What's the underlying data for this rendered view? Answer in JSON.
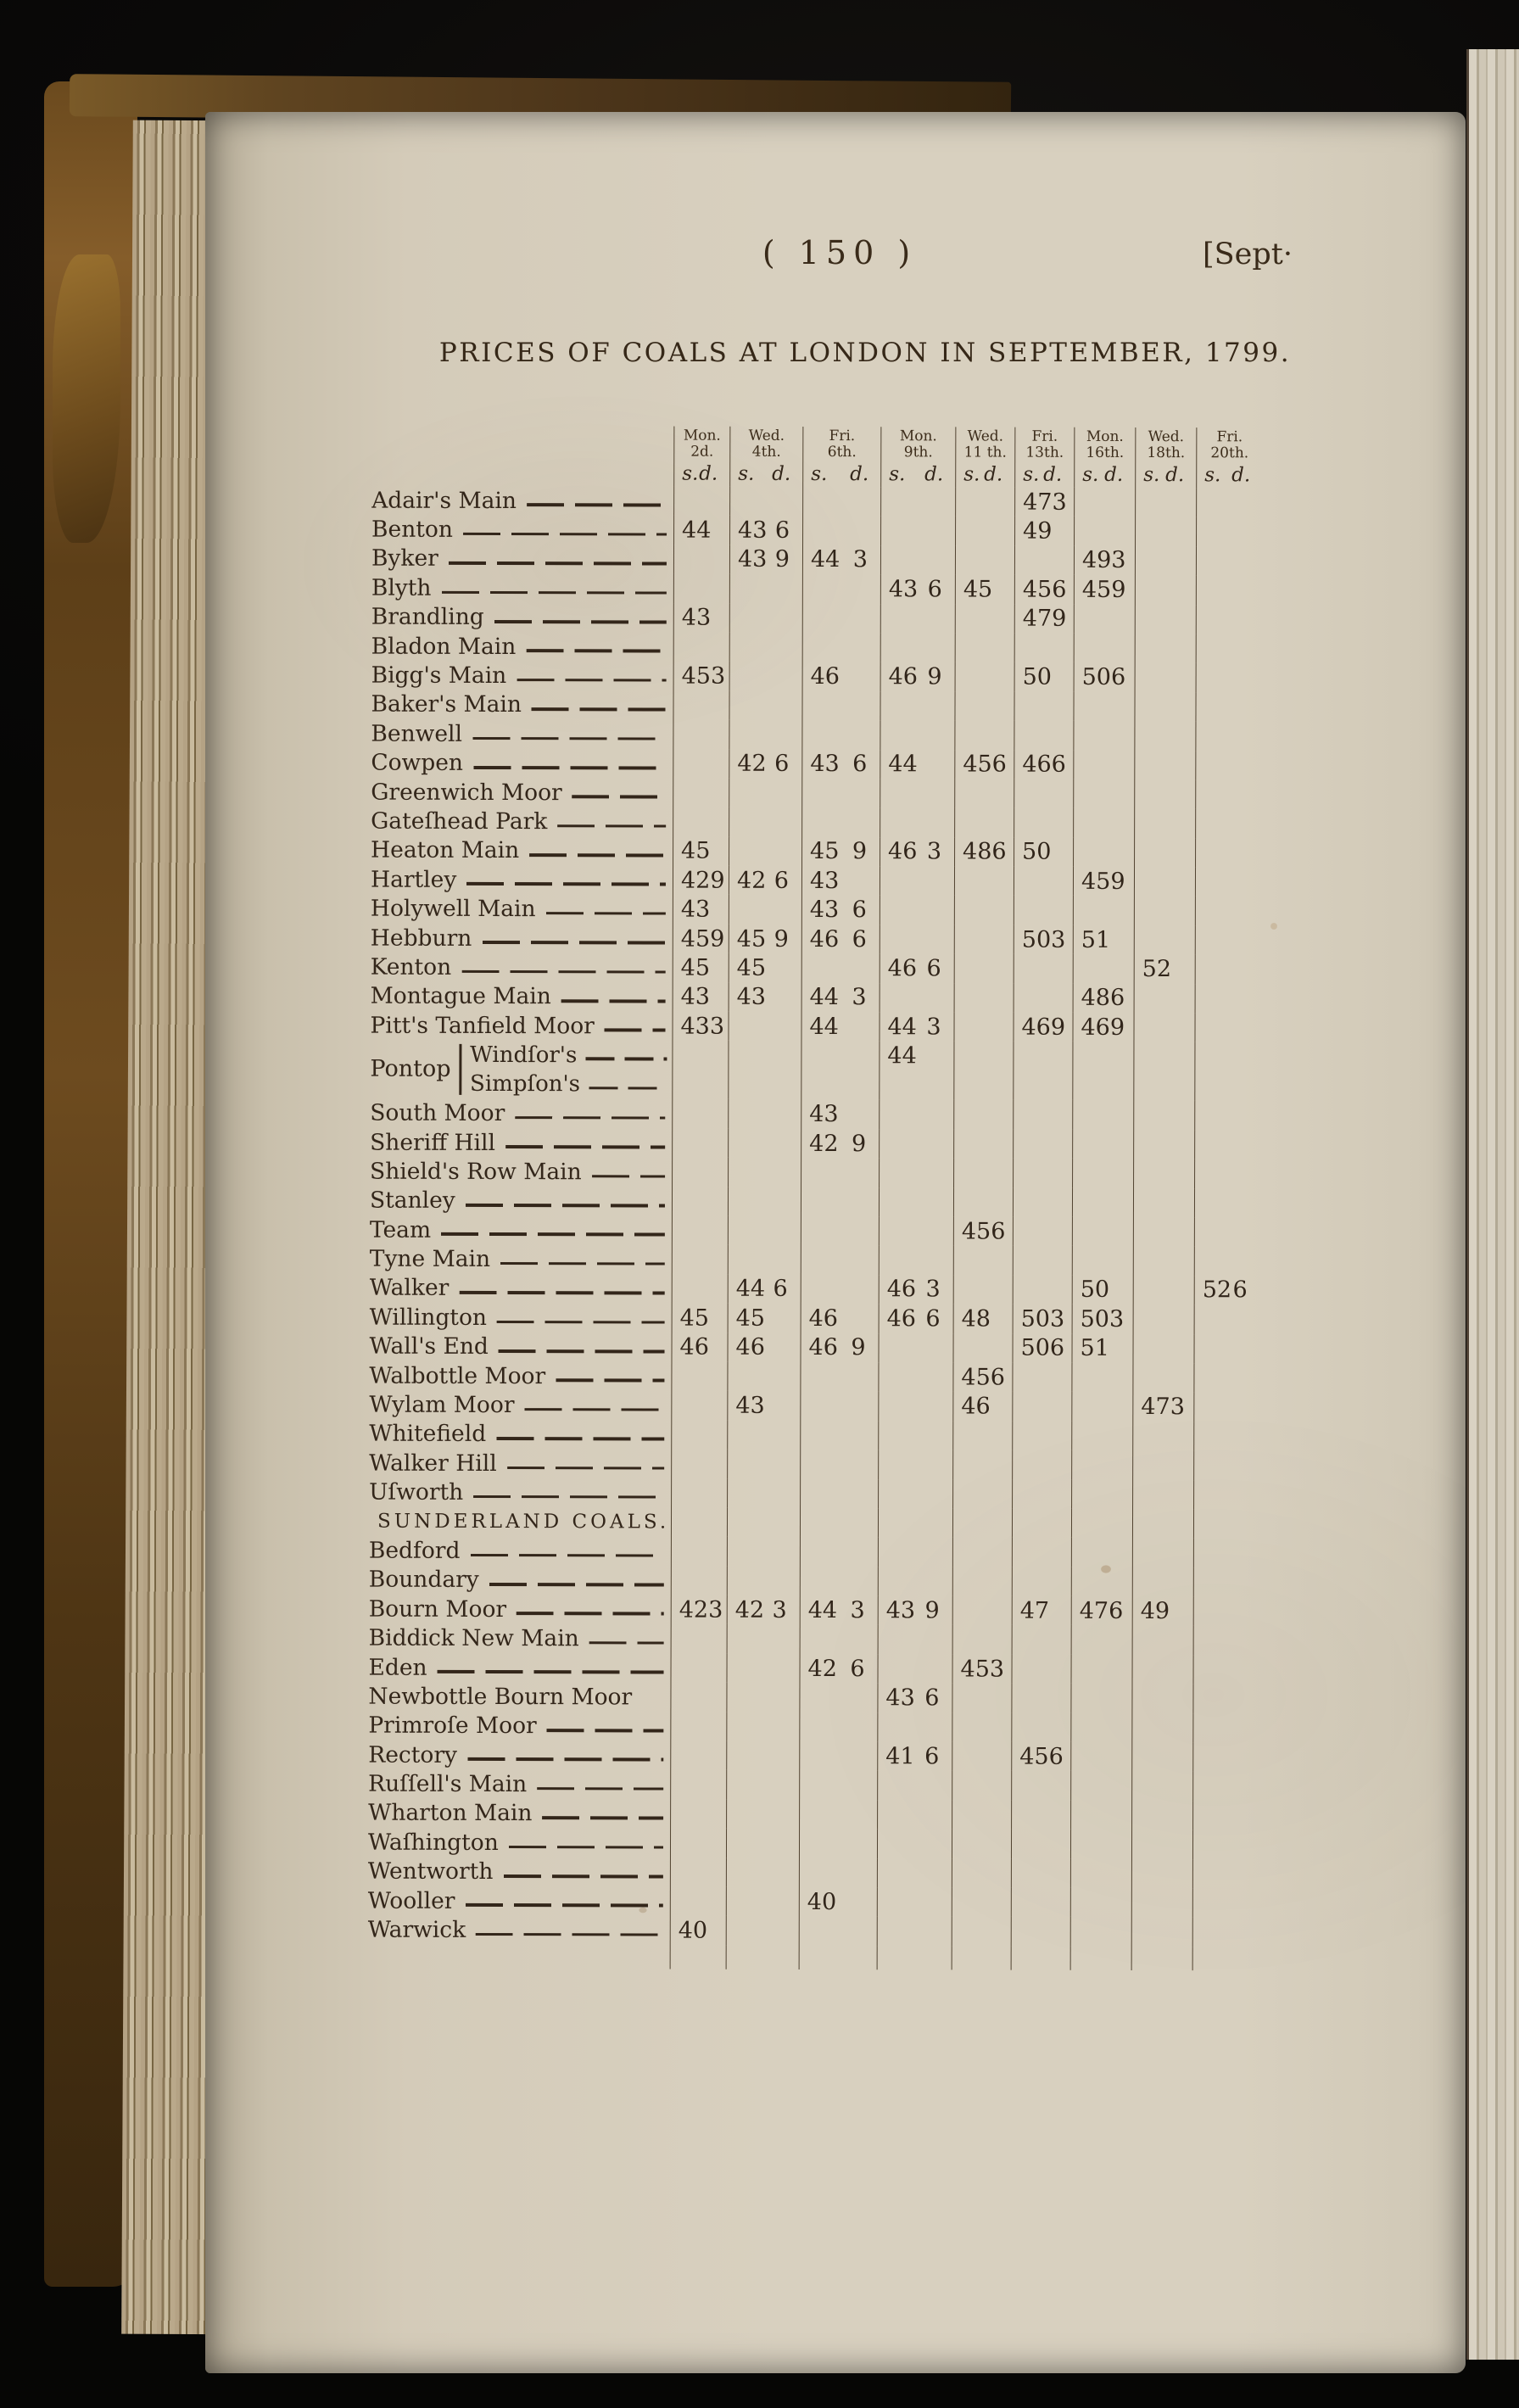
{
  "page": {
    "page_number": "( 150 )",
    "running_header": "[Sept·",
    "title": "PRICES OF COALS AT LONDON IN SEPTEMBER, 1799."
  },
  "table": {
    "unit": {
      "s": "s.",
      "d": "d."
    },
    "columns": [
      {
        "day": "Mon.",
        "date": "2d."
      },
      {
        "day": "Wed.",
        "date": "4th."
      },
      {
        "day": "Fri.",
        "date": "6th."
      },
      {
        "day": "Mon.",
        "date": "9th."
      },
      {
        "day": "Wed.",
        "date": "11 th."
      },
      {
        "day": "Fri.",
        "date": "13th."
      },
      {
        "day": "Mon.",
        "date": "16th."
      },
      {
        "day": "Wed.",
        "date": "18th."
      },
      {
        "day": "Fri.",
        "date": "20th."
      }
    ],
    "rows": [
      {
        "name": "Adair's Main",
        "prices": [
          "",
          "",
          "",
          "",
          "",
          "47 3",
          "",
          "",
          ""
        ]
      },
      {
        "name": "Benton",
        "prices": [
          "44",
          "43 6",
          "",
          "",
          "",
          "49",
          "",
          "",
          ""
        ]
      },
      {
        "name": "Byker",
        "prices": [
          "",
          "43 9",
          "44 3",
          "",
          "",
          "",
          "49 3",
          "",
          ""
        ]
      },
      {
        "name": "Blyth",
        "prices": [
          "",
          "",
          "",
          "43 6",
          "45",
          "45 6",
          "45 9",
          "",
          ""
        ]
      },
      {
        "name": "Brandling",
        "prices": [
          "43",
          "",
          "",
          "",
          "",
          "47 9",
          "",
          "",
          ""
        ]
      },
      {
        "name": "Bladon Main",
        "prices": [
          "",
          "",
          "",
          "",
          "",
          "",
          "",
          "",
          ""
        ]
      },
      {
        "name": "Bigg's Main",
        "prices": [
          "45 3",
          "",
          "46",
          "46 9",
          "",
          "50",
          "50 6",
          "",
          ""
        ]
      },
      {
        "name": "Baker's Main",
        "prices": [
          "",
          "",
          "",
          "",
          "",
          "",
          "",
          "",
          ""
        ]
      },
      {
        "name": "Benwell",
        "prices": [
          "",
          "",
          "",
          "",
          "",
          "",
          "",
          "",
          ""
        ]
      },
      {
        "name": "Cowpen",
        "prices": [
          "",
          "42 6",
          "43 6",
          "44",
          "45 6",
          "46 6",
          "",
          "",
          ""
        ]
      },
      {
        "name": "Greenwich Moor",
        "prices": [
          "",
          "",
          "",
          "",
          "",
          "",
          "",
          "",
          ""
        ]
      },
      {
        "name": "Gateſhead Park",
        "prices": [
          "",
          "",
          "",
          "",
          "",
          "",
          "",
          "",
          ""
        ]
      },
      {
        "name": "Heaton Main",
        "prices": [
          "45",
          "",
          "45 9",
          "46 3",
          "48 6",
          "50",
          "",
          "",
          ""
        ]
      },
      {
        "name": "Hartley",
        "prices": [
          "42 9",
          "42 6",
          "43",
          "",
          "",
          "",
          "45 9",
          "",
          ""
        ]
      },
      {
        "name": "Holywell Main",
        "prices": [
          "43",
          "",
          "43 6",
          "",
          "",
          "",
          "",
          "",
          ""
        ]
      },
      {
        "name": "Hebburn",
        "prices": [
          "45 9",
          "45 9",
          "46 6",
          "",
          "",
          "50 3",
          "51",
          "",
          ""
        ]
      },
      {
        "name": "Kenton",
        "prices": [
          "45",
          "45",
          "",
          "46 6",
          "",
          "",
          "",
          "52",
          ""
        ]
      },
      {
        "name": "Montague Main",
        "prices": [
          "43",
          "43",
          "44 3",
          "",
          "",
          "",
          "48 6",
          "",
          ""
        ]
      },
      {
        "name": "Pitt's Tanfield Moor",
        "prices": [
          "43 3",
          "",
          "44",
          "44 3",
          "",
          "46 9",
          "46 9",
          "",
          ""
        ]
      },
      {
        "type": "group",
        "label": "Pontop",
        "subrows": [
          {
            "name": "Windſor's",
            "prices": [
              "",
              "",
              "",
              "44",
              "",
              "",
              "",
              "",
              ""
            ]
          },
          {
            "name": "Simpſon's",
            "prices": [
              "",
              "",
              "",
              "",
              "",
              "",
              "",
              "",
              ""
            ]
          }
        ]
      },
      {
        "name": "South Moor",
        "prices": [
          "",
          "",
          "43",
          "",
          "",
          "",
          "",
          "",
          ""
        ]
      },
      {
        "name": "Sheriff Hill",
        "prices": [
          "",
          "",
          "42 9",
          "",
          "",
          "",
          "",
          "",
          ""
        ]
      },
      {
        "name": "Shield's Row Main",
        "prices": [
          "",
          "",
          "",
          "",
          "",
          "",
          "",
          "",
          ""
        ]
      },
      {
        "name": "Stanley",
        "prices": [
          "",
          "",
          "",
          "",
          "",
          "",
          "",
          "",
          ""
        ]
      },
      {
        "name": "Team",
        "prices": [
          "",
          "",
          "",
          "",
          "45 6",
          "",
          "",
          "",
          ""
        ]
      },
      {
        "name": "Tyne Main",
        "prices": [
          "",
          "",
          "",
          "",
          "",
          "",
          "",
          "",
          ""
        ]
      },
      {
        "name": "Walker",
        "prices": [
          "",
          "44 6",
          "",
          "46 3",
          "",
          "",
          "50",
          "",
          "52 6"
        ]
      },
      {
        "name": "Willington",
        "prices": [
          "45",
          "45",
          "46",
          "46 6",
          "48",
          "50 3",
          "50 3",
          "",
          ""
        ]
      },
      {
        "name": "Wall's End",
        "prices": [
          "46",
          "46",
          "46 9",
          "",
          "",
          "50 6",
          "51",
          "",
          ""
        ]
      },
      {
        "name": "Walbottle Moor",
        "prices": [
          "",
          "",
          "",
          "",
          "45 6",
          "",
          "",
          "",
          ""
        ]
      },
      {
        "name": "Wylam Moor",
        "prices": [
          "",
          "43",
          "",
          "",
          "46",
          "",
          "",
          "47 3",
          ""
        ]
      },
      {
        "name": "Whitefield",
        "prices": [
          "",
          "",
          "",
          "",
          "",
          "",
          "",
          "",
          ""
        ]
      },
      {
        "name": "Walker Hill",
        "prices": [
          "",
          "",
          "",
          "",
          "",
          "",
          "",
          "",
          ""
        ]
      },
      {
        "name": "Uſworth",
        "prices": [
          "",
          "",
          "",
          "",
          "",
          "",
          "",
          "",
          ""
        ]
      },
      {
        "type": "section",
        "name": "SUNDERLAND COALS."
      },
      {
        "name": "Bedford",
        "prices": [
          "",
          "",
          "",
          "",
          "",
          "",
          "",
          "",
          ""
        ]
      },
      {
        "name": "Boundary",
        "prices": [
          "",
          "",
          "",
          "",
          "",
          "",
          "",
          "",
          ""
        ]
      },
      {
        "name": "Bourn Moor",
        "prices": [
          "42 3",
          "42 3",
          "44 3",
          "43 9",
          "",
          "47",
          "47 6",
          "49",
          ""
        ]
      },
      {
        "name": "Biddick New Main",
        "prices": [
          "",
          "",
          "",
          "",
          "",
          "",
          "",
          "",
          ""
        ]
      },
      {
        "name": "Eden",
        "prices": [
          "",
          "",
          "42 6",
          "",
          "45 3",
          "",
          "",
          "",
          ""
        ]
      },
      {
        "name": "Newbottle Bourn Moor",
        "no_leader": true,
        "prices": [
          "",
          "",
          "",
          "43 6",
          "",
          "",
          "",
          "",
          ""
        ]
      },
      {
        "name": "Primroſe Moor",
        "prices": [
          "",
          "",
          "",
          "",
          "",
          "",
          "",
          "",
          ""
        ]
      },
      {
        "name": "Rectory",
        "prices": [
          "",
          "",
          "",
          "41 6",
          "",
          "45 6",
          "",
          "",
          ""
        ]
      },
      {
        "name": "Ruſſell's Main",
        "prices": [
          "",
          "",
          "",
          "",
          "",
          "",
          "",
          "",
          ""
        ]
      },
      {
        "name": "Wharton Main",
        "prices": [
          "",
          "",
          "",
          "",
          "",
          "",
          "",
          "",
          ""
        ]
      },
      {
        "name": "Waſhington",
        "prices": [
          "",
          "",
          "",
          "",
          "",
          "",
          "",
          "",
          ""
        ]
      },
      {
        "name": "Wentworth",
        "prices": [
          "",
          "",
          "",
          "",
          "",
          "",
          "",
          "",
          ""
        ]
      },
      {
        "name": "Wooller",
        "prices": [
          "",
          "",
          "40",
          "",
          "",
          "",
          "",
          "",
          ""
        ]
      },
      {
        "name": "Warwick",
        "prices": [
          "40",
          "",
          "",
          "",
          "",
          "",
          "",
          "",
          ""
        ]
      }
    ]
  }
}
